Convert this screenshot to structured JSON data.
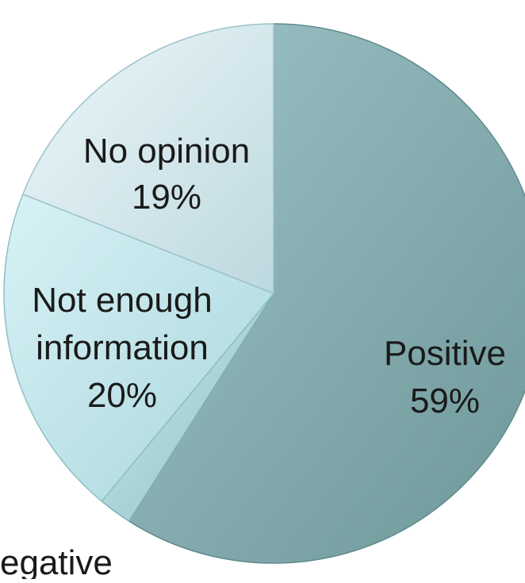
{
  "chart_data": {
    "type": "pie",
    "start_angle_deg": 0,
    "direction": "clockwise",
    "slices": [
      {
        "label": "Positive",
        "value": 59,
        "value_label": "59%",
        "color": "#7fa8ab"
      },
      {
        "label": "Negative",
        "value": 2,
        "value_label": "",
        "color": "#a8d3d8"
      },
      {
        "label": "Not enough information",
        "value": 20,
        "value_label": "20%",
        "color": "#c2e6ec"
      },
      {
        "label": "No opinion",
        "value": 19,
        "value_label": "19%",
        "color": "#d2e6ec"
      }
    ],
    "labels": {
      "positive": "Positive",
      "negative": "egative",
      "not_enough_line1": "Not enough",
      "not_enough_line2": "information",
      "no_opinion": "No opinion"
    }
  }
}
